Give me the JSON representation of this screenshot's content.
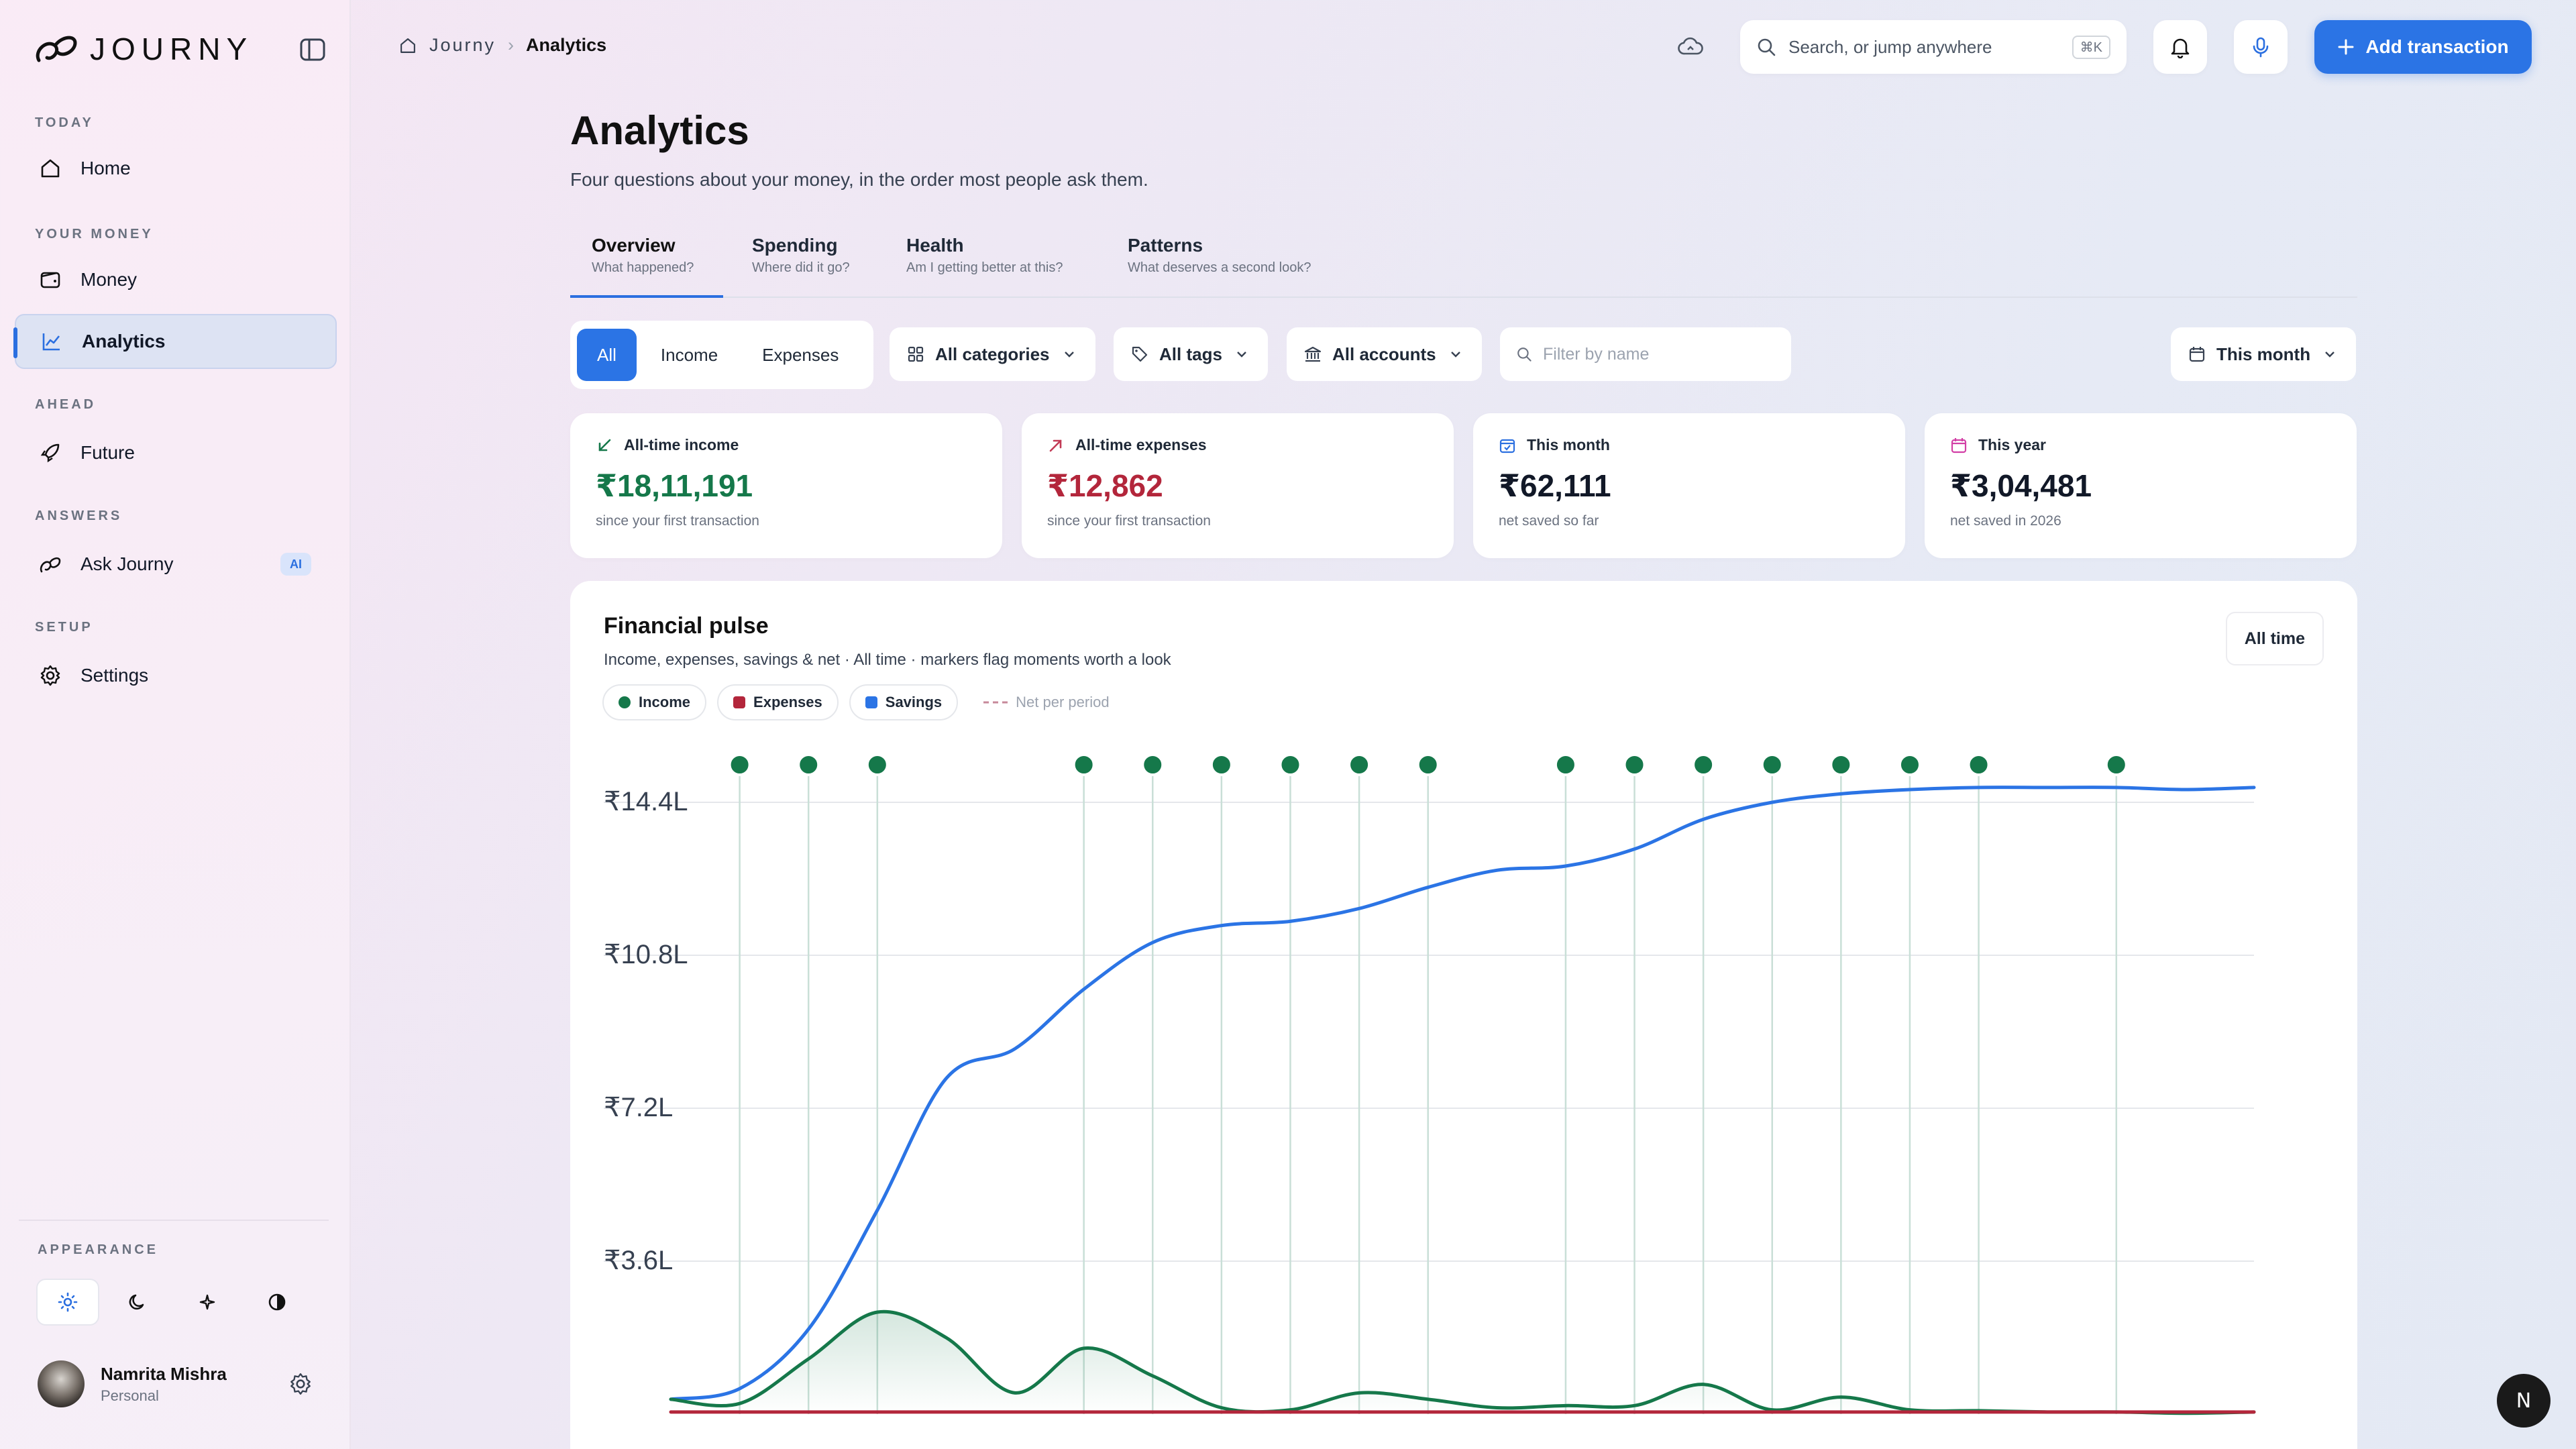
{
  "app": {
    "name": "JOURNY"
  },
  "sidebar": {
    "sections": [
      {
        "label": "TODAY",
        "items": [
          {
            "label": "Home",
            "icon": "home-icon"
          }
        ]
      },
      {
        "label": "YOUR MONEY",
        "items": [
          {
            "label": "Money",
            "icon": "wallet-icon"
          },
          {
            "label": "Analytics",
            "icon": "chart-line-icon",
            "active": true
          }
        ]
      },
      {
        "label": "AHEAD",
        "items": [
          {
            "label": "Future",
            "icon": "rocket-icon"
          }
        ]
      },
      {
        "label": "ANSWERS",
        "items": [
          {
            "label": "Ask Journy",
            "icon": "journy-logo-icon",
            "badge": "AI"
          }
        ]
      },
      {
        "label": "SETUP",
        "items": [
          {
            "label": "Settings",
            "icon": "gear-icon"
          }
        ]
      }
    ],
    "appearance_label": "APPEARANCE",
    "themes": [
      "sun-icon",
      "moon-icon",
      "sparkle-icon",
      "contrast-icon"
    ],
    "user": {
      "name": "Namrita Mishra",
      "role": "Personal"
    }
  },
  "topbar": {
    "breadcrumb": {
      "home": "Journy",
      "current": "Analytics"
    },
    "search_placeholder": "Search, or jump anywhere",
    "search_shortcut": "⌘K",
    "add_button": "Add transaction"
  },
  "page": {
    "title": "Analytics",
    "subtitle": "Four questions about your money, in the order most people ask them.",
    "tabs": [
      {
        "title": "Overview",
        "sub": "What happened?"
      },
      {
        "title": "Spending",
        "sub": "Where did it go?"
      },
      {
        "title": "Health",
        "sub": "Am I getting better at this?"
      },
      {
        "title": "Patterns",
        "sub": "What deserves a second look?"
      }
    ]
  },
  "filters": {
    "segments": [
      "All",
      "Income",
      "Expenses"
    ],
    "categories": "All categories",
    "tags": "All tags",
    "accounts": "All accounts",
    "name_placeholder": "Filter by name",
    "period": "This month"
  },
  "stats": [
    {
      "label": "All-time income",
      "value": "₹18,11,191",
      "foot": "since your first transaction",
      "color": "#15784a",
      "icon_color": "#15784a"
    },
    {
      "label": "All-time expenses",
      "value": "₹12,862",
      "foot": "since your first transaction",
      "color": "#b3263b",
      "icon_color": "#c23a55"
    },
    {
      "label": "This month",
      "value": "₹62,111",
      "foot": "net saved so far",
      "color": "#111111",
      "icon_color": "#2b6fe0"
    },
    {
      "label": "This year",
      "value": "₹3,04,481",
      "foot": "net saved in 2026",
      "color": "#111111",
      "icon_color": "#d23fa6"
    }
  ],
  "pulse": {
    "title": "Financial pulse",
    "subtitle": "Income, expenses, savings & net · All time · markers flag moments worth a look",
    "range": "All time",
    "legend": [
      {
        "name": "Income",
        "color": "#15784a"
      },
      {
        "name": "Expenses",
        "color": "#b3263b"
      },
      {
        "name": "Savings",
        "color": "#2b74e5"
      },
      {
        "name": "Net per period",
        "color": "#c7899a"
      }
    ]
  },
  "chart_data": {
    "type": "line",
    "x": [
      0,
      1,
      2,
      3,
      4,
      5,
      6,
      7,
      8,
      9,
      10,
      11,
      12,
      13,
      14,
      15,
      16,
      17,
      18,
      19,
      20,
      21,
      22,
      23
    ],
    "ylim": [
      0,
      14.4
    ],
    "yticks": [
      "₹3.6L",
      "₹7.2L",
      "₹10.8L",
      "₹14.4L"
    ],
    "ytick_values": [
      3.6,
      7.2,
      10.8,
      14.4
    ],
    "series": [
      {
        "name": "Savings",
        "color": "#2b74e5",
        "values": [
          0.35,
          0.6,
          2.0,
          4.8,
          7.9,
          8.6,
          10.0,
          11.1,
          11.5,
          11.6,
          11.9,
          12.4,
          12.8,
          12.9,
          13.3,
          14.0,
          14.4,
          14.6,
          14.7,
          14.75,
          14.75,
          14.75,
          14.7,
          14.75
        ]
      },
      {
        "name": "Income",
        "color": "#15784a",
        "values": [
          0.35,
          0.25,
          1.3,
          2.4,
          1.8,
          0.5,
          1.55,
          0.9,
          0.15,
          0.1,
          0.5,
          0.35,
          0.15,
          0.2,
          0.2,
          0.7,
          0.1,
          0.4,
          0.1,
          0.08,
          0.05,
          0.05,
          0.02,
          0.05
        ]
      },
      {
        "name": "Expenses",
        "color": "#b3263b",
        "values": [
          0.05,
          0.05,
          0.05,
          0.05,
          0.05,
          0.05,
          0.05,
          0.05,
          0.05,
          0.05,
          0.05,
          0.05,
          0.05,
          0.05,
          0.05,
          0.05,
          0.05,
          0.05,
          0.05,
          0.05,
          0.05,
          0.05,
          0.05,
          0.05
        ]
      }
    ],
    "markers": [
      1,
      2,
      3,
      6,
      7,
      8,
      9,
      10,
      11,
      13,
      14,
      15,
      16,
      17,
      18,
      19,
      21
    ],
    "grid": true
  }
}
